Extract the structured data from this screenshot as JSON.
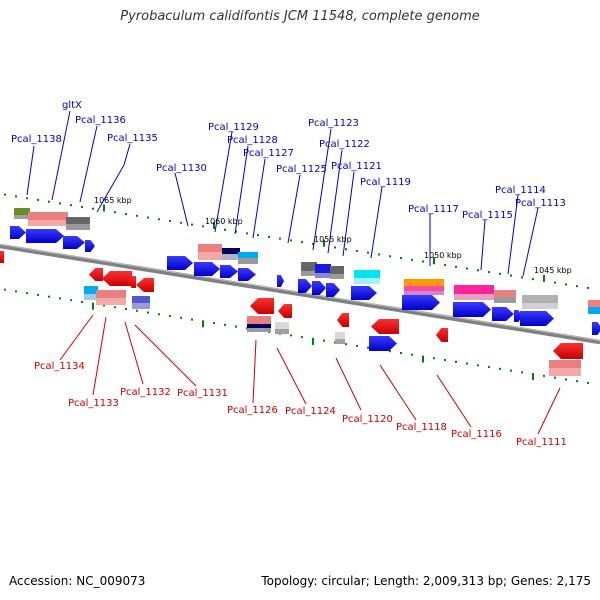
{
  "title": "Pyrobaculum calidifontis JCM 11548, complete genome",
  "footer": {
    "accession": "Accession: NC_009073",
    "topology": "Topology: circular; Length: 2,009,313 bp; Genes: 2,175"
  },
  "colors": {
    "forward_label": "#0000cc",
    "reverse_label": "#cc0000",
    "backbone": "#808080",
    "tick": "#008000",
    "forward_gene": "#0000ff",
    "reverse_gene": "#ff0000"
  },
  "kbp_labels": [
    "1065 kbp",
    "1060 kbp",
    "1055 kbp",
    "1050 kbp",
    "1045 kbp"
  ],
  "forward_labels": [
    "Pcal_1138",
    "gltX",
    "Pcal_1136",
    "Pcal_1135",
    "Pcal_1130",
    "Pcal_1129",
    "Pcal_1128",
    "Pcal_1127",
    "Pcal_1125",
    "Pcal_1123",
    "Pcal_1122",
    "Pcal_1121",
    "Pcal_1119",
    "Pcal_1117",
    "Pcal_1115",
    "Pcal_1114",
    "Pcal_1113"
  ],
  "reverse_labels": [
    "Pcal_1134",
    "Pcal_1133",
    "Pcal_1132",
    "Pcal_1131",
    "Pcal_1126",
    "Pcal_1124",
    "Pcal_1120",
    "Pcal_1118",
    "Pcal_1116",
    "Pcal_1111"
  ]
}
